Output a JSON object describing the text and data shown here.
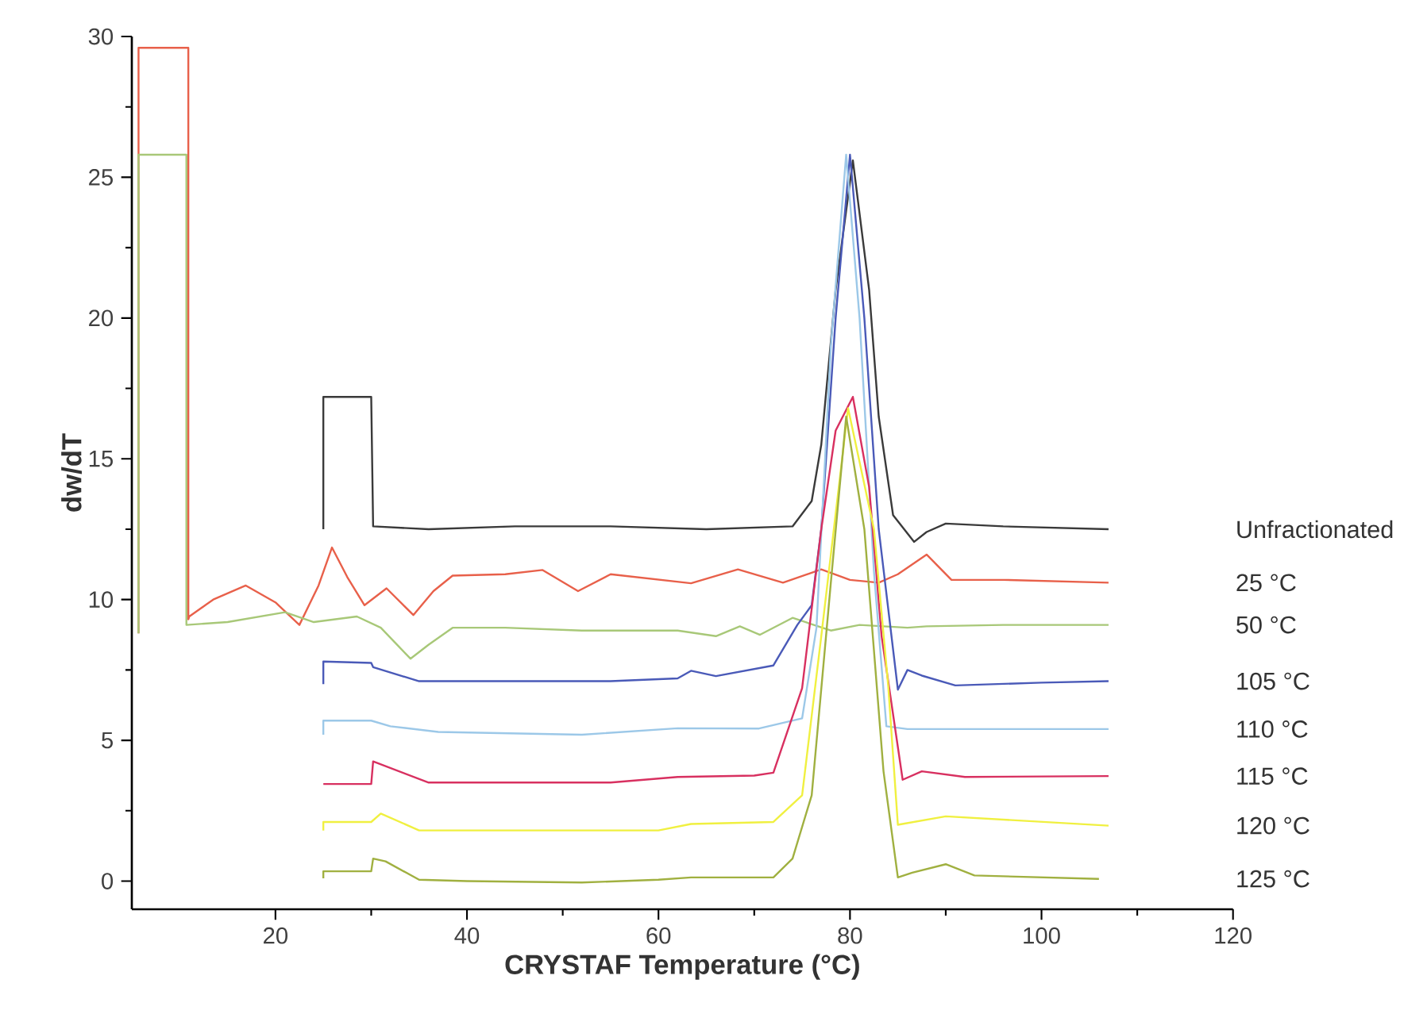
{
  "chart_data": {
    "type": "line",
    "xlabel": "CRYSTAF Temperature (°C)",
    "ylabel": "dw/dT",
    "xlim": [
      5,
      120
    ],
    "ylim": [
      -1,
      30
    ],
    "xticks": [
      20,
      40,
      60,
      80,
      100,
      120
    ],
    "yticks": [
      0,
      5,
      10,
      15,
      20,
      25,
      30
    ],
    "series": [
      {
        "name": "Unfractionated",
        "color": "#3a3a3a",
        "x": [
          25,
          25,
          30,
          30.2,
          36,
          45,
          55,
          65,
          74,
          76,
          77,
          78.5,
          80.3,
          82,
          83,
          84.5,
          86.7,
          88,
          90,
          96,
          107
        ],
        "values": [
          12.5,
          17.2,
          17.2,
          12.6,
          12.5,
          12.6,
          12.6,
          12.5,
          12.6,
          13.5,
          15.5,
          21,
          25.6,
          21,
          16.5,
          13,
          12.05,
          12.4,
          12.7,
          12.6,
          12.5
        ]
      },
      {
        "name": "25 °C",
        "color": "#e8604a",
        "x": [
          5.7,
          5.7,
          10.9,
          10.9,
          11,
          13.5,
          16.9,
          20,
          22.5,
          24.5,
          25.9,
          27.5,
          29.3,
          31.6,
          34.4,
          36.5,
          38.5,
          44,
          47.9,
          51.6,
          55,
          63.4,
          68.3,
          73,
          77,
          80,
          83,
          85,
          88,
          90.6,
          96,
          107
        ],
        "values": [
          8.8,
          29.6,
          29.6,
          9.3,
          9.4,
          10,
          10.5,
          9.9,
          9.1,
          10.5,
          11.85,
          10.8,
          9.8,
          10.4,
          9.45,
          10.3,
          10.85,
          10.9,
          11.05,
          10.3,
          10.9,
          10.58,
          11.07,
          10.6,
          11.07,
          10.7,
          10.6,
          10.9,
          11.6,
          10.7,
          10.7,
          10.6
        ]
      },
      {
        "name": "50 °C",
        "color": "#a8c878",
        "x": [
          5.7,
          5.7,
          10.7,
          10.7,
          15,
          21,
          24,
          28.5,
          31,
          34.1,
          36,
          38.5,
          44,
          52,
          62,
          66,
          68.5,
          70.6,
          74,
          78,
          81,
          86,
          88,
          96,
          107
        ],
        "values": [
          8.8,
          25.8,
          25.8,
          9.1,
          9.2,
          9.55,
          9.2,
          9.4,
          9.0,
          7.9,
          8.4,
          9.0,
          9.0,
          8.9,
          8.9,
          8.7,
          9.05,
          8.75,
          9.35,
          8.9,
          9.1,
          9.0,
          9.05,
          9.1,
          9.1
        ]
      },
      {
        "name": "105 °C",
        "color": "#4a5ab8",
        "x": [
          25,
          25,
          30,
          30.2,
          35,
          40,
          55,
          62,
          63.4,
          66,
          72,
          74.5,
          76,
          77,
          78.5,
          80,
          81.5,
          83,
          85,
          86,
          87.5,
          91,
          100,
          107
        ],
        "values": [
          7.0,
          7.8,
          7.75,
          7.6,
          7.1,
          7.1,
          7.1,
          7.2,
          7.47,
          7.28,
          7.66,
          9.1,
          9.8,
          12.5,
          20,
          25.8,
          20,
          12.5,
          6.8,
          7.5,
          7.3,
          6.95,
          7.05,
          7.1
        ]
      },
      {
        "name": "110 °C",
        "color": "#9cc8e8",
        "x": [
          25,
          25,
          30,
          32,
          37,
          52,
          62,
          70.5,
          75,
          76.5,
          78,
          79.6,
          81,
          82.5,
          83.8,
          86,
          95,
          107
        ],
        "values": [
          5.2,
          5.7,
          5.7,
          5.5,
          5.3,
          5.2,
          5.43,
          5.42,
          5.78,
          9,
          19,
          25.8,
          20,
          11,
          5.5,
          5.4,
          5.4,
          5.4
        ]
      },
      {
        "name": "115 °C",
        "color": "#d83060",
        "x": [
          25,
          30,
          30.2,
          36,
          55,
          62,
          70,
          72,
          75,
          77,
          78.5,
          80.3,
          82,
          83.3,
          85.5,
          87.5,
          92,
          107
        ],
        "values": [
          3.45,
          3.45,
          4.25,
          3.5,
          3.5,
          3.7,
          3.75,
          3.85,
          6.85,
          12.5,
          16,
          17.2,
          14,
          8.7,
          3.6,
          3.9,
          3.7,
          3.73
        ]
      },
      {
        "name": "120 °C",
        "color": "#f0f040",
        "x": [
          25,
          25,
          30,
          31,
          35,
          60,
          63.4,
          72,
          75,
          77,
          79.8,
          82.5,
          84,
          85,
          90,
          107
        ],
        "values": [
          1.8,
          2.1,
          2.1,
          2.4,
          1.8,
          1.8,
          2.03,
          2.1,
          3.05,
          8.7,
          16.8,
          12.5,
          6.9,
          2.0,
          2.3,
          1.97
        ]
      },
      {
        "name": "125 °C",
        "color": "#a0b040",
        "x": [
          25,
          25,
          30,
          30.2,
          31.5,
          35,
          40,
          52,
          60,
          63.4,
          72,
          74,
          76,
          78,
          79.6,
          81.5,
          83.5,
          85,
          86.5,
          90,
          93,
          106
        ],
        "values": [
          0.1,
          0.35,
          0.35,
          0.8,
          0.7,
          0.05,
          0.0,
          -0.05,
          0.05,
          0.13,
          0.13,
          0.8,
          3.05,
          10.6,
          16.5,
          12.5,
          3.9,
          0.13,
          0.3,
          0.6,
          0.2,
          0.08
        ]
      }
    ]
  }
}
